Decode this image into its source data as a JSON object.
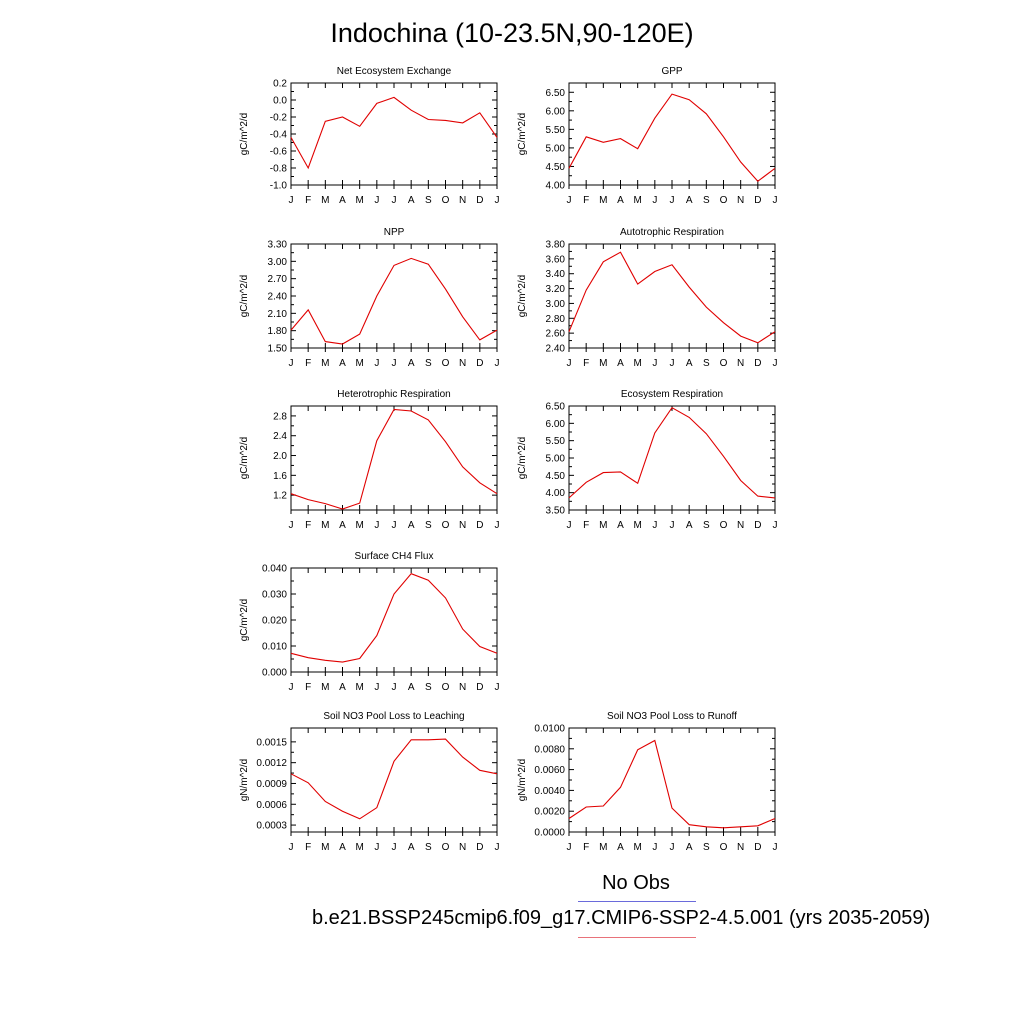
{
  "title": "Indochina (10-23.5N,90-120E)",
  "months": [
    "J",
    "F",
    "M",
    "A",
    "M",
    "J",
    "J",
    "A",
    "S",
    "O",
    "N",
    "D",
    "J"
  ],
  "legend": {
    "obs_label": "No Obs",
    "obs_color": "#6a6adb",
    "model_label": "b.e21.BSSP245cmip6.f09_g17.CMIP6-SSP2-4.5.001 (yrs 2035-2059)",
    "model_color": "#e8727a"
  },
  "line_color": "#e00000",
  "chart_data": [
    {
      "type": "line",
      "title": "Net Ecosystem Exchange",
      "ylabel": "gC/m^2/d",
      "ylim": [
        -1.0,
        0.2
      ],
      "yticks": [
        -1.0,
        -0.8,
        -0.6,
        -0.4,
        -0.2,
        0.0,
        0.2
      ],
      "ytick_labels": [
        "-1.0",
        "-0.8",
        "-0.6",
        "-0.4",
        "-0.2",
        "0.0",
        "0.2"
      ],
      "values": [
        -0.44,
        -0.8,
        -0.25,
        -0.2,
        -0.31,
        -0.04,
        0.03,
        -0.12,
        -0.23,
        -0.24,
        -0.27,
        -0.15,
        -0.44
      ]
    },
    {
      "type": "line",
      "title": "GPP",
      "ylabel": "gC/m^2/d",
      "ylim": [
        4.0,
        6.75
      ],
      "yticks": [
        4.0,
        4.5,
        5.0,
        5.5,
        6.0,
        6.5
      ],
      "ytick_labels": [
        "4.00",
        "4.50",
        "5.00",
        "5.50",
        "6.00",
        "6.50"
      ],
      "values": [
        4.45,
        5.3,
        5.15,
        5.25,
        4.98,
        5.8,
        6.45,
        6.3,
        5.92,
        5.3,
        4.62,
        4.1,
        4.45
      ]
    },
    {
      "type": "line",
      "title": "NPP",
      "ylabel": "gC/m^2/d",
      "ylim": [
        1.5,
        3.3
      ],
      "yticks": [
        1.5,
        1.8,
        2.1,
        2.4,
        2.7,
        3.0,
        3.3
      ],
      "ytick_labels": [
        "1.50",
        "1.80",
        "2.10",
        "2.40",
        "2.70",
        "3.00",
        "3.30"
      ],
      "values": [
        1.81,
        2.16,
        1.61,
        1.57,
        1.74,
        2.4,
        2.93,
        3.05,
        2.95,
        2.52,
        2.04,
        1.64,
        1.81
      ]
    },
    {
      "type": "line",
      "title": "Autotrophic Respiration",
      "ylabel": "gC/m^2/d",
      "ylim": [
        2.4,
        3.8
      ],
      "yticks": [
        2.4,
        2.6,
        2.8,
        3.0,
        3.2,
        3.4,
        3.6,
        3.8
      ],
      "ytick_labels": [
        "2.40",
        "2.60",
        "2.80",
        "3.00",
        "3.20",
        "3.40",
        "3.60",
        "3.80"
      ],
      "values": [
        2.62,
        3.18,
        3.56,
        3.69,
        3.26,
        3.43,
        3.52,
        3.22,
        2.95,
        2.74,
        2.56,
        2.47,
        2.62
      ]
    },
    {
      "type": "line",
      "title": "Heterotrophic Respiration",
      "ylabel": "gC/m^2/d",
      "ylim": [
        0.9,
        3.0
      ],
      "yticks": [
        1.2,
        1.6,
        2.0,
        2.4,
        2.8
      ],
      "ytick_labels": [
        "1.2",
        "1.6",
        "2.0",
        "2.4",
        "2.8"
      ],
      "values": [
        1.23,
        1.11,
        1.03,
        0.92,
        1.04,
        2.3,
        2.93,
        2.9,
        2.72,
        2.28,
        1.77,
        1.45,
        1.23
      ]
    },
    {
      "type": "line",
      "title": "Ecosystem Respiration",
      "ylabel": "gC/m^2/d",
      "ylim": [
        3.5,
        6.5
      ],
      "yticks": [
        3.5,
        4.0,
        4.5,
        5.0,
        5.5,
        6.0,
        6.5
      ],
      "ytick_labels": [
        "3.50",
        "4.00",
        "4.50",
        "5.00",
        "5.50",
        "6.00",
        "6.50"
      ],
      "values": [
        3.85,
        4.3,
        4.58,
        4.6,
        4.27,
        5.72,
        6.45,
        6.17,
        5.7,
        5.05,
        4.35,
        3.9,
        3.85
      ]
    },
    {
      "type": "line",
      "title": "Surface CH4 Flux",
      "ylabel": "gC/m^2/d",
      "ylim": [
        0.0,
        0.04
      ],
      "yticks": [
        0.0,
        0.01,
        0.02,
        0.03,
        0.04
      ],
      "ytick_labels": [
        "0.000",
        "0.010",
        "0.020",
        "0.030",
        "0.040"
      ],
      "values": [
        0.0072,
        0.0055,
        0.0045,
        0.0038,
        0.0052,
        0.014,
        0.03,
        0.0378,
        0.0353,
        0.0285,
        0.0165,
        0.0098,
        0.0072
      ]
    },
    {
      "type": "line",
      "title": "Soil NO3 Pool Loss to Leaching",
      "ylabel": "gN/m^2/d",
      "ylim": [
        0.0002,
        0.0017
      ],
      "yticks": [
        0.0003,
        0.0006,
        0.0009,
        0.0012,
        0.0015
      ],
      "ytick_labels": [
        "0.0003",
        "0.0006",
        "0.0009",
        "0.0012",
        "0.0015"
      ],
      "values": [
        0.00104,
        0.00091,
        0.00064,
        0.0005,
        0.00039,
        0.00055,
        0.00122,
        0.00153,
        0.00153,
        0.00154,
        0.00128,
        0.00109,
        0.00104
      ]
    },
    {
      "type": "line",
      "title": "Soil NO3 Pool Loss to Runoff",
      "ylabel": "gN/m^2/d",
      "ylim": [
        0.0,
        0.01
      ],
      "yticks": [
        0.0,
        0.002,
        0.004,
        0.006,
        0.008,
        0.01
      ],
      "ytick_labels": [
        "0.0000",
        "0.0020",
        "0.0040",
        "0.0060",
        "0.0080",
        "0.0100"
      ],
      "values": [
        0.0013,
        0.0024,
        0.0025,
        0.0043,
        0.0079,
        0.0088,
        0.0023,
        0.0007,
        0.0005,
        0.0004,
        0.0005,
        0.0006,
        0.0013
      ]
    }
  ]
}
